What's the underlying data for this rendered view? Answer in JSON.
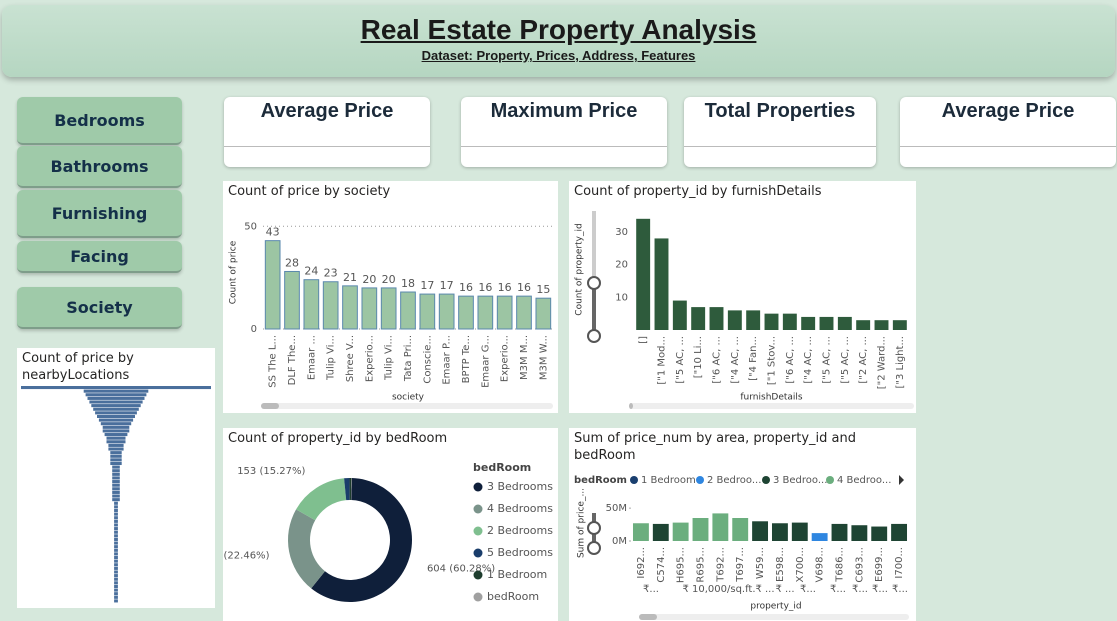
{
  "header": {
    "title": "Real Estate Property  Analysis",
    "subtitle": "Dataset: Property, Prices, Address, Features"
  },
  "slicers": [
    "Bedrooms",
    "Bathrooms",
    "Furnishing",
    "Facing",
    "Society"
  ],
  "cards": [
    "Average Price",
    "Maximum Price",
    "Total Properties",
    "Average Price"
  ],
  "chart_data": [
    {
      "type": "bar",
      "title": "Count of price by society",
      "y_label": "Count of price",
      "x_label": "society",
      "categories": [
        "SS The L...",
        "DLF The...",
        "Emaar ...",
        "Tulip Vi...",
        "Shree V...",
        "Experio...",
        "Tulip Vi...",
        "Tata Pri...",
        "Conscie...",
        "Emaar P...",
        "BPTP Te...",
        "Emaar G...",
        "Experio...",
        "M3M M...",
        "M3M W..."
      ],
      "values": [
        43,
        28,
        24,
        23,
        21,
        20,
        20,
        18,
        17,
        17,
        16,
        16,
        16,
        16,
        15
      ],
      "data_labels": true,
      "color": "#9cc5a3",
      "edge_color": "#5a88ad",
      "ylim": [
        0,
        55
      ],
      "yticks": [
        0,
        50
      ],
      "grid": true
    },
    {
      "type": "bar",
      "title": "Count of property_id by furnishDetails",
      "y_label": "Count of property_id",
      "x_label": "furnishDetails",
      "categories": [
        "[]",
        "[\"1 Mod...",
        "[\"5 AC, ...",
        "[\"10 Li...",
        "[\"6 AC, ...",
        "[\"4 AC, ...",
        "[\"4 Fan...",
        "[\"1 Stov...",
        "[\"6 AC, ...",
        "[\"4 AC, ...",
        "[\"5 AC, ...",
        "[\"5 AC, ...",
        "[\"2 AC, ...",
        "[\"2 Ward...",
        "[\"3 Light..."
      ],
      "values": [
        34,
        28,
        9,
        7,
        7,
        6,
        6,
        5,
        5,
        4,
        4,
        4,
        3,
        3,
        3
      ],
      "data_labels": false,
      "color": "#2e5b3c",
      "ylim": [
        0,
        37
      ],
      "yticks": [
        10,
        20,
        30
      ],
      "grid": false
    },
    {
      "type": "donut",
      "title": "Count of property_id by bedRoom",
      "legend_title": "bedRoom",
      "categories": [
        "3 Bedrooms",
        "4 Bedrooms",
        "2 Bedrooms",
        "5 Bedrooms",
        "1 Bedroom",
        "bedRoom"
      ],
      "values": [
        604,
        225,
        153,
        14,
        5,
        1
      ],
      "value_labels": [
        "604 (60.28%)",
        "225 (22.46%)",
        "153 (15.27%)",
        null,
        null,
        null
      ],
      "colors": [
        "#0f1f3a",
        "#7a938a",
        "#7fbf8f",
        "#1a3d6b",
        "#1e3d2e",
        "#a0a0a0"
      ]
    },
    {
      "type": "column",
      "title": "Sum of price_num by area, property_id and bedRoom",
      "legend_title": "bedRoom",
      "y_label": "Sum of price_...",
      "x_label": "property_id",
      "categories": [
        "I692...",
        "C574...",
        "H695...",
        "R695...",
        "T692...",
        "T697...",
        "W59...",
        "E598...",
        "X700...",
        "V698...",
        "T686...",
        "C693...",
        "E699...",
        "I700..."
      ],
      "x_groups": [
        "₹...",
        "₹ 10,000/sq.ft.",
        "₹ ...",
        "₹ ...",
        "₹...",
        "₹...",
        "₹...",
        "₹...",
        "₹..."
      ],
      "series": [
        {
          "name": "1 Bedroom",
          "color": "#1a3f6f",
          "values": [
            null,
            null,
            null,
            null,
            null,
            null,
            null,
            null,
            null,
            null,
            null,
            null,
            null,
            null
          ]
        },
        {
          "name": "2 Bedroo...",
          "color": "#2f86e0",
          "values": [
            null,
            null,
            null,
            null,
            null,
            null,
            null,
            null,
            null,
            12000000,
            null,
            null,
            null,
            null
          ]
        },
        {
          "name": "3 Bedroo...",
          "color": "#1e4433",
          "values": [
            null,
            26000000,
            null,
            null,
            null,
            null,
            30000000,
            27000000,
            28000000,
            null,
            26000000,
            24000000,
            22000000,
            26000000
          ]
        },
        {
          "name": "4 Bedroo...",
          "color": "#6bae7e",
          "values": [
            27000000,
            null,
            28000000,
            35000000,
            42000000,
            35000000,
            null,
            null,
            null,
            null,
            null,
            null,
            null,
            null
          ]
        }
      ],
      "ylim": [
        0,
        70000000
      ],
      "yticks": [
        {
          "value": 0,
          "label": "0M"
        },
        {
          "value": 50000000,
          "label": "50M"
        }
      ]
    },
    {
      "type": "funnel",
      "title": "Count of price by nearbyLocations",
      "color": "#4a6f9c",
      "values": [
        50,
        17,
        16,
        15,
        14,
        13,
        12,
        11,
        10,
        9,
        8,
        7,
        7,
        6,
        5,
        5,
        4,
        4,
        3,
        3,
        3,
        3,
        2,
        2,
        2,
        2,
        2,
        2,
        2,
        2,
        2,
        2,
        1,
        1,
        1,
        1,
        1,
        1,
        1,
        1,
        1,
        1,
        1,
        1,
        1,
        1,
        1,
        1,
        1,
        1,
        1,
        1,
        1,
        1,
        1,
        1,
        1,
        1,
        1,
        1
      ]
    }
  ]
}
